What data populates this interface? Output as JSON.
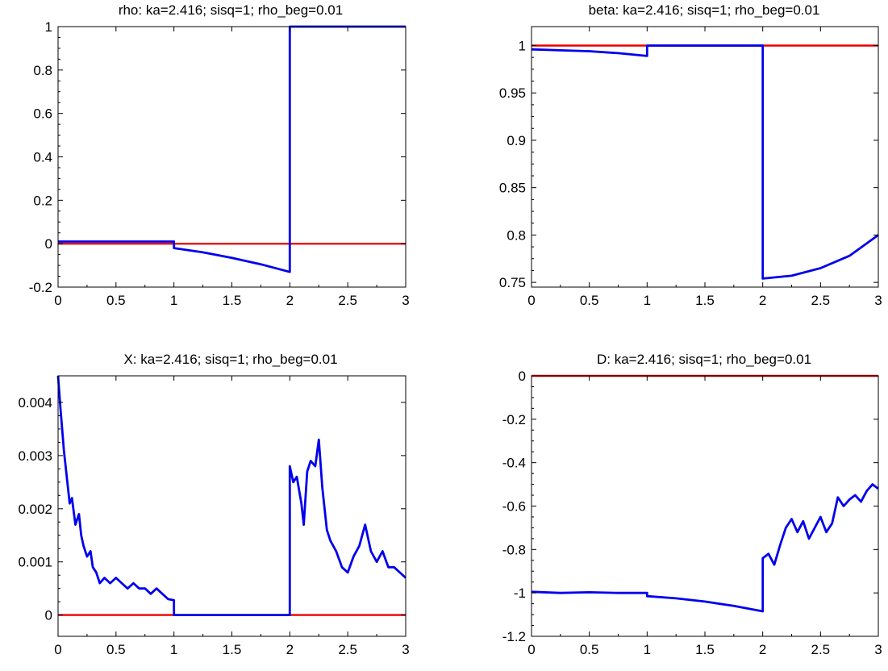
{
  "colors": {
    "series": "#0000ee",
    "reference": "#ee0000",
    "axis": "#000000"
  },
  "chart_data": [
    {
      "id": "rho",
      "type": "line",
      "title": "rho: ka=2.416; sisq=1; rho_beg=0.01",
      "xlim": [
        0,
        3
      ],
      "ylim": [
        -0.2,
        1
      ],
      "xticks": [
        "0",
        "0.5",
        "1",
        "1.5",
        "2",
        "2.5",
        "3"
      ],
      "xtick_values": [
        0,
        0.5,
        1,
        1.5,
        2,
        2.5,
        3
      ],
      "yticks": [
        "-0.2",
        "0",
        "0.2",
        "0.4",
        "0.6",
        "0.8",
        "1"
      ],
      "ytick_values": [
        -0.2,
        0,
        0.2,
        0.4,
        0.6,
        0.8,
        1
      ],
      "series": [
        {
          "kind": "reference",
          "x": [
            0,
            3
          ],
          "y": [
            0,
            0
          ]
        },
        {
          "kind": "main",
          "x": [
            0,
            1,
            1,
            1.25,
            1.5,
            1.75,
            2,
            2,
            3
          ],
          "y": [
            0.01,
            0.01,
            -0.02,
            -0.04,
            -0.065,
            -0.095,
            -0.13,
            1,
            1
          ]
        }
      ]
    },
    {
      "id": "beta",
      "type": "line",
      "title": "beta: ka=2.416; sisq=1; rho_beg=0.01",
      "xlim": [
        0,
        3
      ],
      "ylim": [
        0.745,
        1.02
      ],
      "xticks": [
        "0",
        "0.5",
        "1",
        "1.5",
        "2",
        "2.5",
        "3"
      ],
      "xtick_values": [
        0,
        0.5,
        1,
        1.5,
        2,
        2.5,
        3
      ],
      "yticks": [
        "0.75",
        "0.8",
        "0.85",
        "0.9",
        "0.95",
        "1"
      ],
      "ytick_values": [
        0.75,
        0.8,
        0.85,
        0.9,
        0.95,
        1
      ],
      "series": [
        {
          "kind": "reference",
          "x": [
            0,
            3
          ],
          "y": [
            1,
            1
          ]
        },
        {
          "kind": "main",
          "x": [
            0,
            0.25,
            0.5,
            0.75,
            1,
            1,
            2,
            2,
            2.25,
            2.5,
            2.75,
            3
          ],
          "y": [
            0.996,
            0.995,
            0.994,
            0.992,
            0.989,
            1,
            1,
            0.754,
            0.757,
            0.765,
            0.778,
            0.8
          ]
        }
      ]
    },
    {
      "id": "X",
      "type": "line",
      "title": "X: ka=2.416; sisq=1; rho_beg=0.01",
      "xlim": [
        0,
        3
      ],
      "ylim": [
        -0.0004,
        0.0045
      ],
      "xticks": [
        "0",
        "0.5",
        "1",
        "1.5",
        "2",
        "2.5",
        "3"
      ],
      "xtick_values": [
        0,
        0.5,
        1,
        1.5,
        2,
        2.5,
        3
      ],
      "yticks": [
        "0",
        "0.001",
        "0.002",
        "0.003",
        "0.004"
      ],
      "ytick_values": [
        0,
        0.001,
        0.002,
        0.003,
        0.004
      ],
      "series": [
        {
          "kind": "reference",
          "x": [
            0,
            3
          ],
          "y": [
            0,
            0
          ]
        },
        {
          "kind": "main",
          "x": [
            0,
            0.02,
            0.05,
            0.08,
            0.1,
            0.12,
            0.15,
            0.18,
            0.2,
            0.22,
            0.25,
            0.28,
            0.3,
            0.33,
            0.36,
            0.4,
            0.45,
            0.5,
            0.55,
            0.6,
            0.65,
            0.7,
            0.75,
            0.8,
            0.85,
            0.9,
            0.95,
            1,
            1,
            2,
            2,
            2.03,
            2.06,
            2.1,
            2.12,
            2.15,
            2.18,
            2.22,
            2.25,
            2.28,
            2.32,
            2.35,
            2.4,
            2.45,
            2.5,
            2.55,
            2.6,
            2.65,
            2.7,
            2.75,
            2.8,
            2.85,
            2.9,
            2.95,
            3
          ],
          "y": [
            0.0045,
            0.0039,
            0.0031,
            0.0025,
            0.0021,
            0.0022,
            0.0017,
            0.0019,
            0.0015,
            0.0013,
            0.0011,
            0.0012,
            0.0009,
            0.0008,
            0.0006,
            0.0007,
            0.0006,
            0.0007,
            0.0006,
            0.0005,
            0.0006,
            0.0005,
            0.0005,
            0.0004,
            0.0005,
            0.0004,
            0.0003,
            0.00028,
            0,
            0,
            0.0028,
            0.0025,
            0.0026,
            0.0021,
            0.0017,
            0.0027,
            0.0029,
            0.0028,
            0.0033,
            0.0024,
            0.0016,
            0.0014,
            0.0012,
            0.0009,
            0.0008,
            0.0011,
            0.0013,
            0.0017,
            0.0012,
            0.001,
            0.0012,
            0.0009,
            0.0009,
            0.0008,
            0.0007
          ]
        }
      ]
    },
    {
      "id": "D",
      "type": "line",
      "title": "D: ka=2.416; sisq=1; rho_beg=0.01",
      "xlim": [
        0,
        3
      ],
      "ylim": [
        -1.2,
        0
      ],
      "xticks": [
        "0",
        "0.5",
        "1",
        "1.5",
        "2",
        "2.5",
        "3"
      ],
      "xtick_values": [
        0,
        0.5,
        1,
        1.5,
        2,
        2.5,
        3
      ],
      "yticks": [
        "-1.2",
        "-1",
        "-0.8",
        "-0.6",
        "-0.4",
        "-0.2",
        "0"
      ],
      "ytick_values": [
        -1.2,
        -1,
        -0.8,
        -0.6,
        -0.4,
        -0.2,
        0
      ],
      "series": [
        {
          "kind": "reference",
          "x": [
            0,
            3
          ],
          "y": [
            0,
            0
          ]
        },
        {
          "kind": "main",
          "x": [
            0,
            0.25,
            0.5,
            0.75,
            1,
            1,
            1.25,
            1.5,
            1.75,
            2,
            2,
            2.05,
            2.1,
            2.15,
            2.2,
            2.25,
            2.3,
            2.35,
            2.4,
            2.45,
            2.5,
            2.55,
            2.6,
            2.65,
            2.7,
            2.75,
            2.8,
            2.85,
            2.9,
            2.95,
            3
          ],
          "y": [
            -0.995,
            -1.0,
            -0.997,
            -1.0,
            -1.0,
            -1.015,
            -1.025,
            -1.04,
            -1.06,
            -1.085,
            -0.84,
            -0.82,
            -0.87,
            -0.78,
            -0.7,
            -0.66,
            -0.72,
            -0.67,
            -0.75,
            -0.7,
            -0.65,
            -0.72,
            -0.68,
            -0.56,
            -0.6,
            -0.57,
            -0.55,
            -0.58,
            -0.53,
            -0.5,
            -0.52
          ]
        }
      ]
    }
  ]
}
